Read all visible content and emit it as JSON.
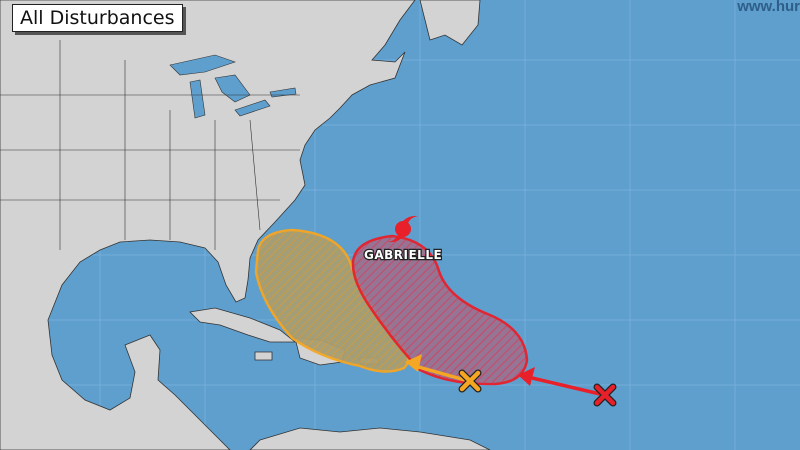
{
  "title": "All Disturbances",
  "watermark": "www.hur",
  "storm": {
    "name": "GABRIELLE",
    "icon": "hurricane-symbol-icon",
    "color": "#e8202a"
  },
  "disturbances": [
    {
      "id": "red",
      "color": "#e8202a",
      "marker": "x-icon",
      "hatch": "#8a6f9a"
    },
    {
      "id": "orange",
      "color": "#f5a623",
      "marker": "x-icon",
      "hatch": "#a89a6a"
    }
  ],
  "colors": {
    "ocean": "#5e9fce",
    "land": "#d3d3d3",
    "borders": "#333333"
  }
}
